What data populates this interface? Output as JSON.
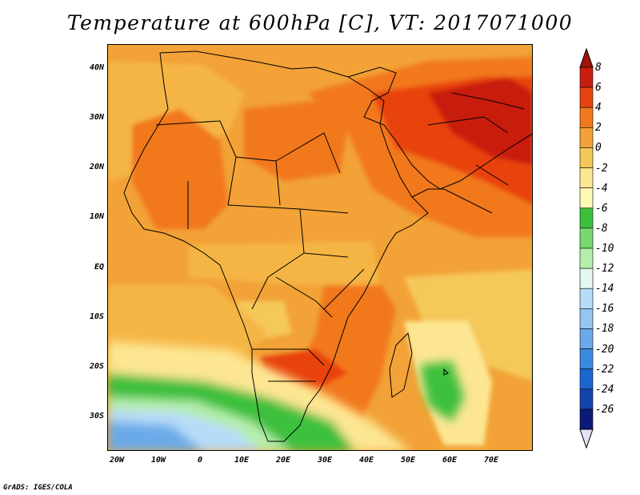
{
  "title": "Temperature at 600hPa [C], VT: 2017071000",
  "credit": "GrADS: IGES/COLA",
  "map": {
    "projection": "lat-lon",
    "lon_range": [
      -22,
      80
    ],
    "lat_range": [
      -37,
      45
    ],
    "background_color": "#f2a236",
    "lat_ticks": [
      {
        "value": 40,
        "label": "40N"
      },
      {
        "value": 30,
        "label": "30N"
      },
      {
        "value": 20,
        "label": "20N"
      },
      {
        "value": 10,
        "label": "10N"
      },
      {
        "value": 0,
        "label": "EQ"
      },
      {
        "value": -10,
        "label": "10S"
      },
      {
        "value": -20,
        "label": "20S"
      },
      {
        "value": -30,
        "label": "30S"
      }
    ],
    "lon_ticks": [
      {
        "value": -20,
        "label": "20W"
      },
      {
        "value": -10,
        "label": "10W"
      },
      {
        "value": 0,
        "label": "0"
      },
      {
        "value": 10,
        "label": "10E"
      },
      {
        "value": 20,
        "label": "20E"
      },
      {
        "value": 30,
        "label": "30E"
      },
      {
        "value": 40,
        "label": "40E"
      },
      {
        "value": 50,
        "label": "50E"
      },
      {
        "value": 60,
        "label": "60E"
      },
      {
        "value": 70,
        "label": "70E"
      }
    ]
  },
  "colorbar": {
    "levels": [
      {
        "label": "8",
        "color": "#c81d0f"
      },
      {
        "label": "6",
        "color": "#e8430e"
      },
      {
        "label": "4",
        "color": "#f2781f"
      },
      {
        "label": "2",
        "color": "#f2a236"
      },
      {
        "label": "0",
        "color": "#f5c85a"
      },
      {
        "label": "-2",
        "color": "#fde692"
      },
      {
        "label": "-4",
        "color": "#fdf8b4"
      },
      {
        "label": "-6",
        "color": "#3cc03c"
      },
      {
        "label": "-8",
        "color": "#79d86f"
      },
      {
        "label": "-10",
        "color": "#b5eeaa"
      },
      {
        "label": "-12",
        "color": "#e2f8f0"
      },
      {
        "label": "-14",
        "color": "#b7dcf8"
      },
      {
        "label": "-16",
        "color": "#95c5f2"
      },
      {
        "label": "-18",
        "color": "#6aaae8"
      },
      {
        "label": "-20",
        "color": "#3a8bde"
      },
      {
        "label": "-22",
        "color": "#1e66cf"
      },
      {
        "label": "-24",
        "color": "#1444ad"
      },
      {
        "label": "-26",
        "color": "#0b1a74"
      }
    ],
    "top_arrow_color": "#a0140a",
    "bottom_arrow_color": "#e6e0f8"
  }
}
